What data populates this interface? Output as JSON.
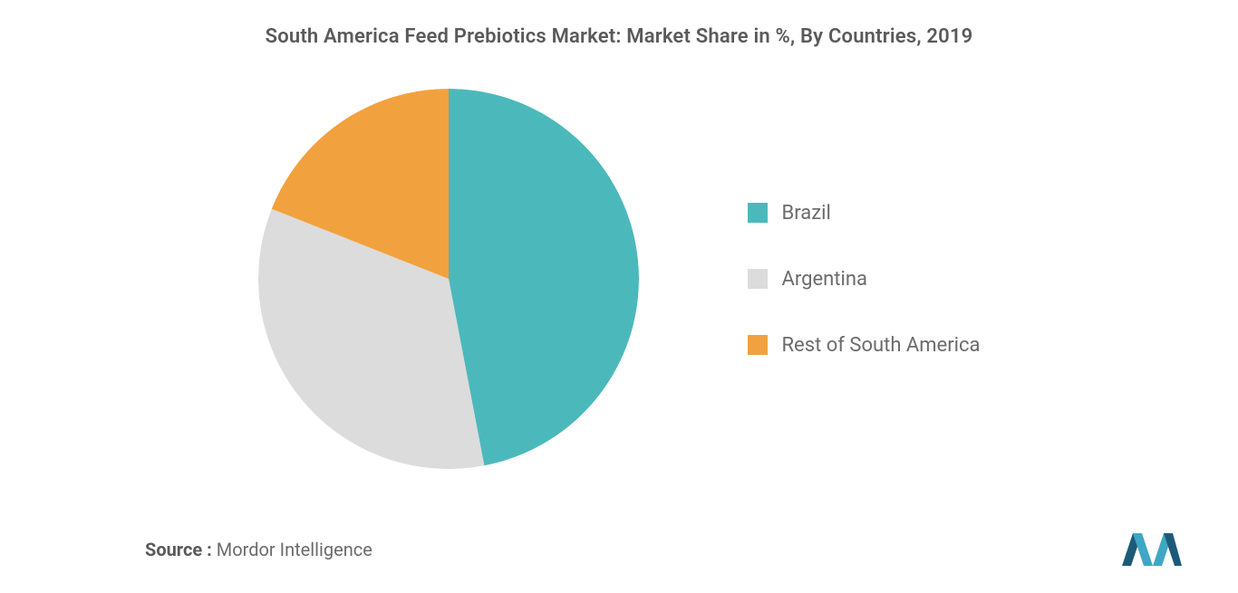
{
  "chart": {
    "type": "pie",
    "title": "South America Feed Prebiotics Market: Market Share in %, By Countries, 2019",
    "title_fontsize": 22,
    "title_color": "#5a5a5a",
    "background_color": "#ffffff",
    "pie_radius": 210,
    "start_angle_deg": 0,
    "slices": [
      {
        "label": "Brazil",
        "value": 47,
        "color": "#4bb9bb"
      },
      {
        "label": "Argentina",
        "value": 34,
        "color": "#dcdcdc"
      },
      {
        "label": "Rest of South America",
        "value": 19,
        "color": "#f2a13f"
      }
    ],
    "legend": {
      "position": "right",
      "fontsize": 22,
      "label_color": "#6b6b6b",
      "swatch_size": 22,
      "gap": 48
    },
    "source_prefix": "Source :",
    "source_text": "Mordor Intelligence",
    "source_fontsize": 20,
    "logo_colors": {
      "bar1": "#1c5b78",
      "bar2": "#3fa7c4",
      "bar3": "#1c5b78"
    }
  }
}
